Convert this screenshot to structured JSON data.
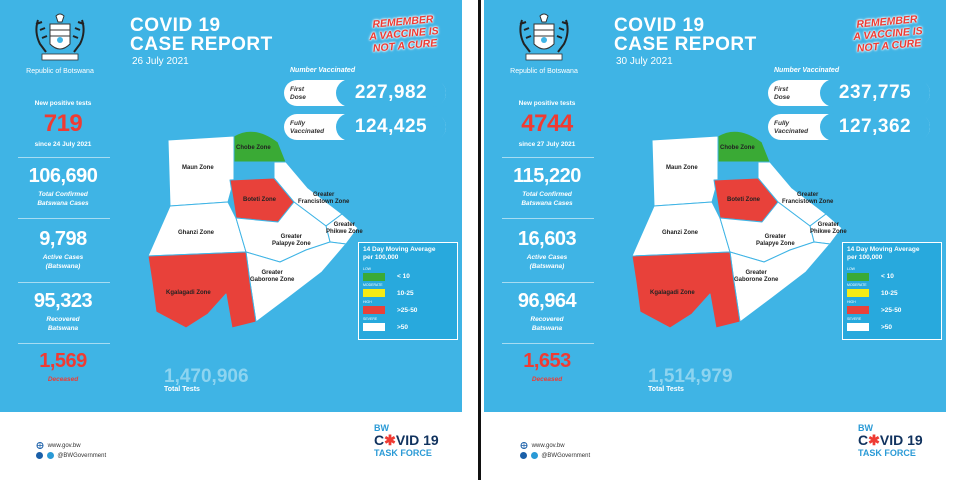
{
  "reports": [
    {
      "country": "Republic of Botswana",
      "title_line1": "COVID 19",
      "title_line2": "CASE REPORT",
      "date": "26 July 2021",
      "remember": [
        "REMEMBER",
        "A VACCINE IS",
        "NOT A CURE"
      ],
      "new_tests_label": "New positive tests",
      "new_positive": "719",
      "since": "since 24 July 2021",
      "total_confirmed": "106,690",
      "total_confirmed_label": [
        "Total Confirmed",
        "Batswana Cases"
      ],
      "active": "9,798",
      "active_label": [
        "Active Cases",
        "(Batswana)"
      ],
      "recovered": "95,323",
      "recovered_label": [
        "Recovered",
        "Batswana"
      ],
      "deceased": "1,569",
      "deceased_label": "Deceased",
      "vaccinated_label": "Number Vaccinated",
      "first_dose_label": [
        "First",
        "Dose"
      ],
      "first_dose": "227,982",
      "fully_label": [
        "Fully",
        "Vaccinated"
      ],
      "fully": "124,425",
      "zones": {
        "chobe": "Chobe Zone",
        "maun": "Maun Zone",
        "boteti": "Boteti Zone",
        "francistown": [
          "Greater",
          "Francistown Zone"
        ],
        "ghanzi": "Ghanzi Zone",
        "phikwe": [
          "Greater",
          "Phikwe Zone"
        ],
        "palapye": [
          "Greater",
          "Palapye Zone"
        ],
        "gaborone": [
          "Greater",
          "Gaborone Zone"
        ],
        "kgalagadi": "Kgalagadi Zone"
      },
      "legend_title": [
        "14 Day Moving Average",
        "per 100,000"
      ],
      "legend": [
        {
          "tag": "LOW",
          "label": "< 10",
          "color": "#3aaa35"
        },
        {
          "tag": "MODERATE",
          "label": "10-25",
          "color": "#f6eb14"
        },
        {
          "tag": "HIGH",
          "label": ">25-50",
          "color": "#e8413a"
        },
        {
          "tag": "SEVERE",
          "label": ">50",
          "color": "#ffffff"
        }
      ],
      "total_tests": "1,470,906",
      "total_tests_label": "Total Tests",
      "website": "www.gov.bw",
      "social": "@BWGovernment",
      "tf_bw": "BW",
      "tf_covid_pre": "C",
      "tf_covid_v": "✱",
      "tf_covid_post": "VID 19",
      "tf_task": "TASK FORCE"
    },
    {
      "country": "Republic of Botswana",
      "title_line1": "COVID 19",
      "title_line2": "CASE REPORT",
      "date": "30 July 2021",
      "remember": [
        "REMEMBER",
        "A VACCINE IS",
        "NOT A CURE"
      ],
      "new_tests_label": "New positive tests",
      "new_positive": "4744",
      "since": "since 27 July 2021",
      "total_confirmed": "115,220",
      "total_confirmed_label": [
        "Total Confirmed",
        "Batswana Cases"
      ],
      "active": "16,603",
      "active_label": [
        "Active Cases",
        "(Batswana)"
      ],
      "recovered": "96,964",
      "recovered_label": [
        "Recovered",
        "Batswana"
      ],
      "deceased": "1,653",
      "deceased_label": "Deceased",
      "vaccinated_label": "Number Vaccinated",
      "first_dose_label": [
        "First",
        "Dose"
      ],
      "first_dose": "237,775",
      "fully_label": [
        "Fully",
        "Vaccinated"
      ],
      "fully": "127,362",
      "zones": {
        "chobe": "Chobe Zone",
        "maun": "Maun Zone",
        "boteti": "Boteti Zone",
        "francistown": [
          "Greater",
          "Francistown Zone"
        ],
        "ghanzi": "Ghanzi Zone",
        "phikwe": [
          "Greater",
          "Phikwe Zone"
        ],
        "palapye": [
          "Greater",
          "Palapye Zone"
        ],
        "gaborone": [
          "Greater",
          "Gaborone Zone"
        ],
        "kgalagadi": "Kgalagadi Zone"
      },
      "legend_title": [
        "14 Day Moving Average",
        "per 100,000"
      ],
      "legend": [
        {
          "tag": "LOW",
          "label": "< 10",
          "color": "#3aaa35"
        },
        {
          "tag": "MODERATE",
          "label": "10-25",
          "color": "#f6eb14"
        },
        {
          "tag": "HIGH",
          "label": ">25-50",
          "color": "#e8413a"
        },
        {
          "tag": "SEVERE",
          "label": ">50",
          "color": "#ffffff"
        }
      ],
      "total_tests": "1,514,979",
      "total_tests_label": "Total Tests",
      "website": "www.gov.bw",
      "social": "@BWGovernment",
      "tf_bw": "BW",
      "tf_covid_pre": "C",
      "tf_covid_v": "✱",
      "tf_covid_post": "VID 19",
      "tf_task": "TASK FORCE"
    }
  ]
}
